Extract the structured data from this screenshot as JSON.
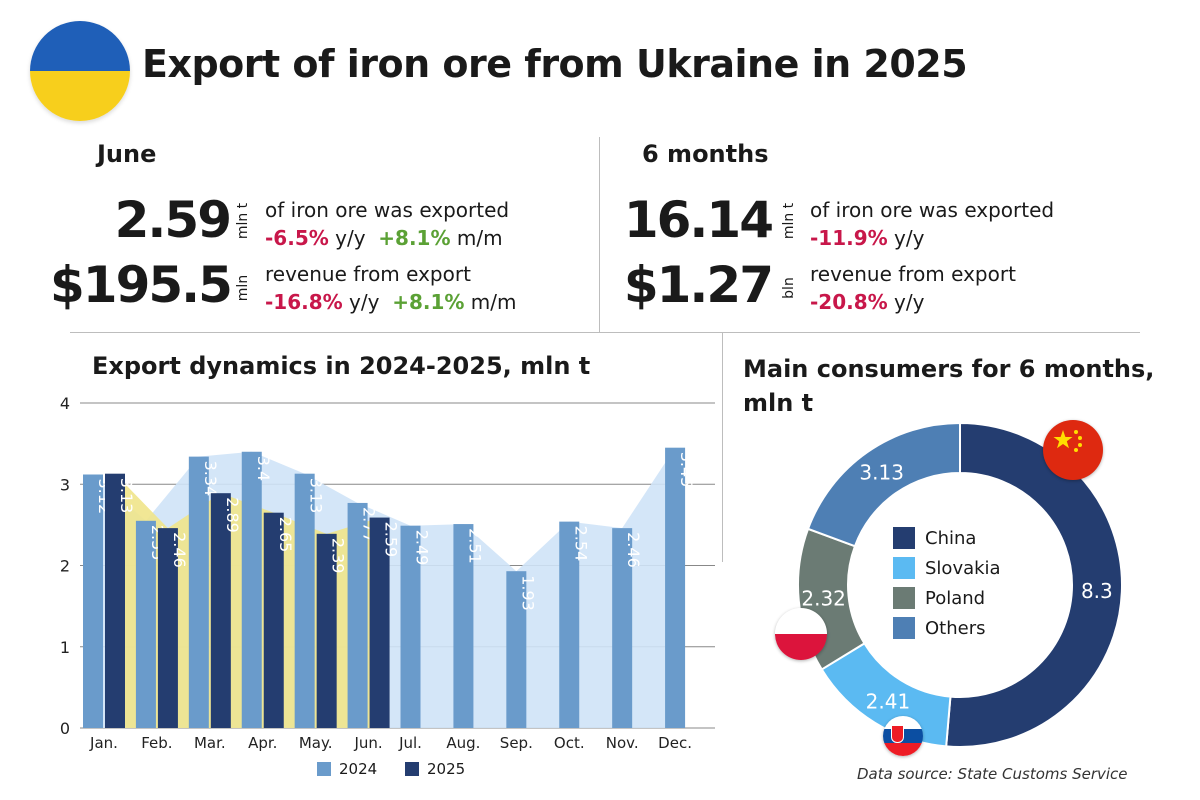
{
  "title": "Export of iron ore from Ukraine in 2025",
  "june": {
    "heading": "June",
    "volume_value": "2.59",
    "volume_unit": "mln t",
    "volume_desc": "of iron ore was exported",
    "volume_yy": "-6.5%",
    "volume_yy_label": "y/y",
    "volume_mm": "+8.1%",
    "volume_mm_label": "m/m",
    "revenue_value": "$195.5",
    "revenue_unit": "mln",
    "revenue_desc": "revenue from export",
    "revenue_yy": "-16.8%",
    "revenue_yy_label": "y/y",
    "revenue_mm": "+8.1%",
    "revenue_mm_label": "m/m"
  },
  "six_months": {
    "heading": "6 months",
    "volume_value": "16.14",
    "volume_unit": "mln t",
    "volume_desc": "of iron ore was exported",
    "volume_yy": "-11.9%",
    "volume_yy_label": "y/y",
    "revenue_value": "$1.27",
    "revenue_unit": "bln",
    "revenue_desc": "revenue from export",
    "revenue_yy": "-20.8%",
    "revenue_yy_label": "y/y"
  },
  "source": "Data source: State Customs Service",
  "colors": {
    "c2024": "#6a9bcb",
    "c2025": "#243d70",
    "area2024": "#cfe3f7",
    "area2025": "#efe48a",
    "china": "#243d70",
    "slovakia": "#5bbaf2",
    "poland": "#6b7b74",
    "others": "#4e7fb4",
    "negative": "#c8174a",
    "positive": "#5ba135"
  },
  "chart_data": [
    {
      "type": "bar",
      "title": "Export dynamics in 2024-2025, mln t",
      "categories": [
        "Jan.",
        "Feb.",
        "Mar.",
        "Apr.",
        "May.",
        "Jun.",
        "Jul.",
        "Aug.",
        "Sep.",
        "Oct.",
        "Nov.",
        "Dec."
      ],
      "series": [
        {
          "name": "2024",
          "values": [
            3.12,
            2.55,
            3.34,
            3.4,
            3.13,
            2.77,
            2.49,
            2.51,
            1.93,
            2.54,
            2.46,
            3.45
          ]
        },
        {
          "name": "2025",
          "values": [
            3.13,
            2.46,
            2.89,
            2.65,
            2.39,
            2.59,
            null,
            null,
            null,
            null,
            null,
            null
          ]
        }
      ],
      "yticks": [
        "0",
        "1",
        "2",
        "3",
        "4"
      ],
      "ylim": [
        0,
        4
      ],
      "legend_position": "bottom"
    },
    {
      "type": "pie",
      "title": "Main consumers for 6 months, mln t",
      "labels": [
        "China",
        "Slovakia",
        "Poland",
        "Others"
      ],
      "values": [
        8.3,
        2.41,
        2.32,
        3.13
      ],
      "legend_position": "center"
    }
  ]
}
